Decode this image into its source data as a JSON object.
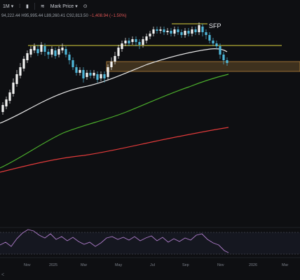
{
  "toolbar": {
    "interval": "1M",
    "price_type": "Mark Price"
  },
  "ohlc_legend": {
    "open": "94,222.44",
    "high": "H95,995.44",
    "low": "L89,260.41",
    "close": "C92,813.50",
    "change": "−1,408.94 (−1.50%)"
  },
  "colors": {
    "background": "#0e0f12",
    "candle_up": "#f2f2f2",
    "candle_down": "#4fb7d9",
    "resistance_line": "#d9d23c",
    "zone_fill": "#7a5a2e",
    "ma_short": "#e8e8e8",
    "ma_mid": "#4caf2c",
    "ma_long": "#e03a3a",
    "rsi_line": "#b37fcf"
  },
  "chart_data": {
    "type": "candlestick",
    "title": "",
    "xlabel": "",
    "ylabel": "",
    "x_ticks": [
      "Nov",
      "2025",
      "Mar",
      "May",
      "Jul",
      "Sep",
      "Nov",
      "2026",
      "Mar"
    ],
    "annotations": [
      {
        "text": "SFP"
      }
    ],
    "overlays": [
      "yellow horizontal level",
      "orange support zone",
      "white moving average",
      "green moving average",
      "red moving average"
    ],
    "rsi_panel": true
  }
}
